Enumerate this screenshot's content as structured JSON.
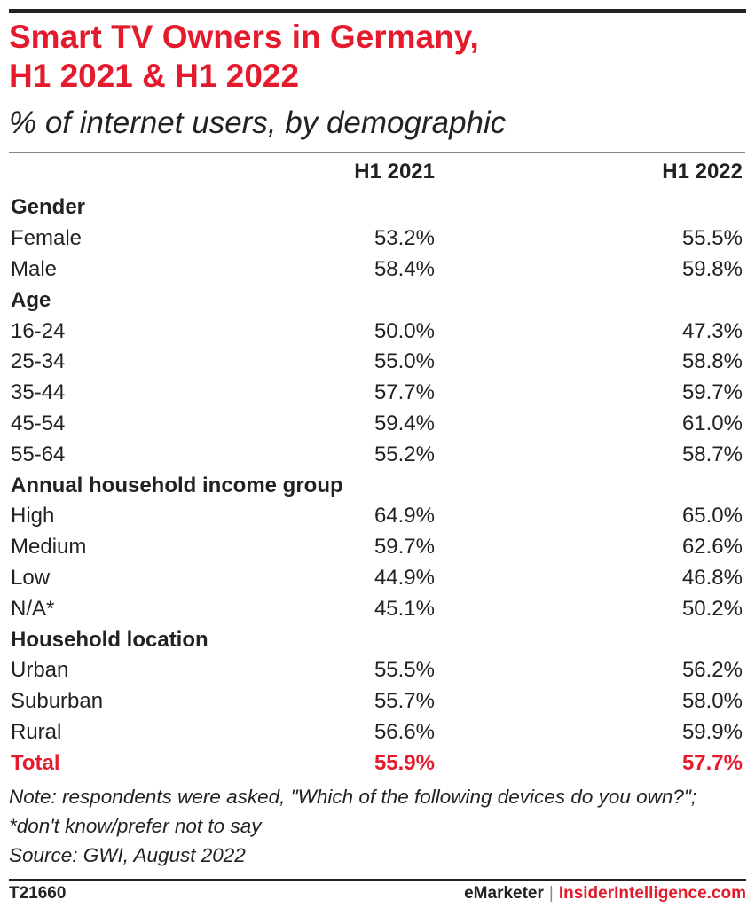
{
  "title_line1": "Smart TV Owners in Germany,",
  "title_line2": "H1 2021 & H1 2022",
  "subtitle": "% of internet users, by demographic",
  "columns": [
    "H1 2021",
    "H1 2022"
  ],
  "rows": [
    {
      "label": "Gender",
      "kind": "group"
    },
    {
      "label": "Female",
      "kind": "data",
      "values": [
        "53.2%",
        "55.5%"
      ]
    },
    {
      "label": "Male",
      "kind": "data",
      "values": [
        "58.4%",
        "59.8%"
      ]
    },
    {
      "label": "Age",
      "kind": "group"
    },
    {
      "label": "16-24",
      "kind": "data",
      "values": [
        "50.0%",
        "47.3%"
      ]
    },
    {
      "label": "25-34",
      "kind": "data",
      "values": [
        "55.0%",
        "58.8%"
      ]
    },
    {
      "label": "35-44",
      "kind": "data",
      "values": [
        "57.7%",
        "59.7%"
      ]
    },
    {
      "label": "45-54",
      "kind": "data",
      "values": [
        "59.4%",
        "61.0%"
      ]
    },
    {
      "label": "55-64",
      "kind": "data",
      "values": [
        "55.2%",
        "58.7%"
      ]
    },
    {
      "label": "Annual household income group",
      "kind": "group"
    },
    {
      "label": "High",
      "kind": "data",
      "values": [
        "64.9%",
        "65.0%"
      ]
    },
    {
      "label": "Medium",
      "kind": "data",
      "values": [
        "59.7%",
        "62.6%"
      ]
    },
    {
      "label": "Low",
      "kind": "data",
      "values": [
        "44.9%",
        "46.8%"
      ]
    },
    {
      "label": "N/A*",
      "kind": "data",
      "values": [
        "45.1%",
        "50.2%"
      ]
    },
    {
      "label": "Household location",
      "kind": "group"
    },
    {
      "label": "Urban",
      "kind": "data",
      "values": [
        "55.5%",
        "56.2%"
      ]
    },
    {
      "label": "Suburban",
      "kind": "data",
      "values": [
        "55.7%",
        "58.0%"
      ]
    },
    {
      "label": "Rural",
      "kind": "data",
      "values": [
        "56.6%",
        "59.9%"
      ]
    },
    {
      "label": "Total",
      "kind": "total",
      "values": [
        "55.9%",
        "57.7%"
      ]
    }
  ],
  "note": "Note: respondents were asked, \"Which of the following devices do you own?\"; *don't know/prefer not to say",
  "source": "Source: GWI, August 2022",
  "footer": {
    "code": "T21660",
    "brand_left": "eMarketer",
    "separator": "|",
    "brand_right": "InsiderIntelligence.com"
  },
  "colors": {
    "accent": "#e41a2d",
    "text": "#222222",
    "rule": "#888888"
  },
  "chart_data": {
    "type": "table",
    "title": "Smart TV Owners in Germany, H1 2021 & H1 2022",
    "subtitle": "% of internet users, by demographic",
    "columns": [
      "H1 2021",
      "H1 2022"
    ],
    "groups": [
      {
        "name": "Gender",
        "rows": [
          {
            "label": "Female",
            "values": [
              53.2,
              55.5
            ]
          },
          {
            "label": "Male",
            "values": [
              58.4,
              59.8
            ]
          }
        ]
      },
      {
        "name": "Age",
        "rows": [
          {
            "label": "16-24",
            "values": [
              50.0,
              47.3
            ]
          },
          {
            "label": "25-34",
            "values": [
              55.0,
              58.8
            ]
          },
          {
            "label": "35-44",
            "values": [
              57.7,
              59.7
            ]
          },
          {
            "label": "45-54",
            "values": [
              59.4,
              61.0
            ]
          },
          {
            "label": "55-64",
            "values": [
              55.2,
              58.7
            ]
          }
        ]
      },
      {
        "name": "Annual household income group",
        "rows": [
          {
            "label": "High",
            "values": [
              64.9,
              65.0
            ]
          },
          {
            "label": "Medium",
            "values": [
              59.7,
              62.6
            ]
          },
          {
            "label": "Low",
            "values": [
              44.9,
              46.8
            ]
          },
          {
            "label": "N/A*",
            "values": [
              45.1,
              50.2
            ]
          }
        ]
      },
      {
        "name": "Household location",
        "rows": [
          {
            "label": "Urban",
            "values": [
              55.5,
              56.2
            ]
          },
          {
            "label": "Suburban",
            "values": [
              55.7,
              58.0
            ]
          },
          {
            "label": "Rural",
            "values": [
              56.6,
              59.9
            ]
          }
        ]
      }
    ],
    "total": {
      "label": "Total",
      "values": [
        55.9,
        57.7
      ]
    }
  }
}
